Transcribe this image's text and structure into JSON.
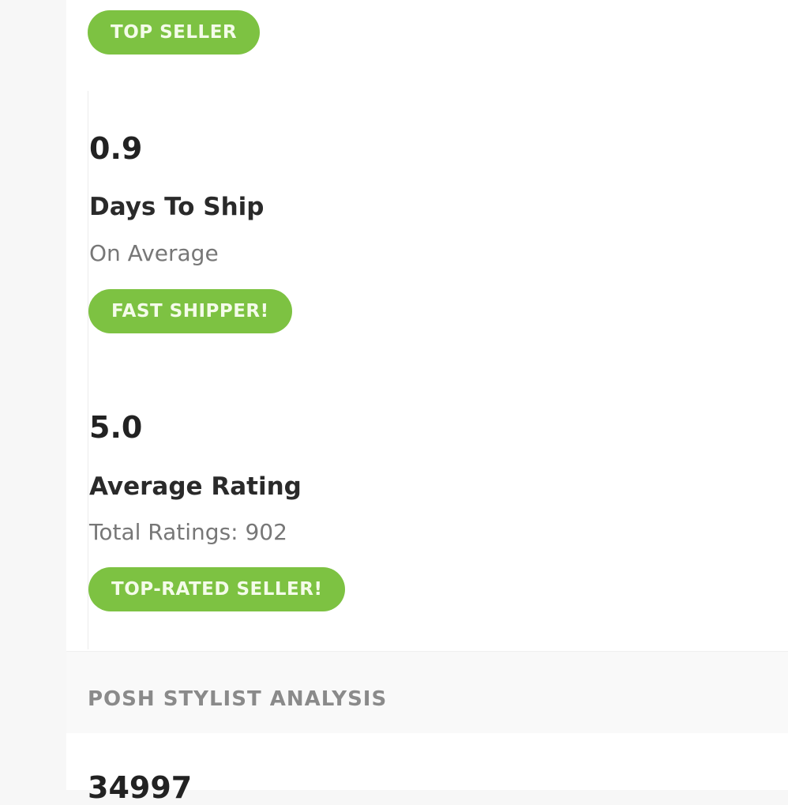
{
  "badges": {
    "top_seller": "TOP SELLER",
    "fast_shipper": "FAST SHIPPER!",
    "top_rated": "TOP-RATED SELLER!"
  },
  "shipping": {
    "value": "0.9",
    "label": "Days To Ship",
    "sub": "On Average"
  },
  "rating": {
    "value": "5.0",
    "label": "Average Rating",
    "sub": "Total Ratings: 902"
  },
  "section": {
    "title": "POSH STYLIST ANALYSIS",
    "first_value": "34997"
  },
  "colors": {
    "badge": "#7dc242"
  }
}
